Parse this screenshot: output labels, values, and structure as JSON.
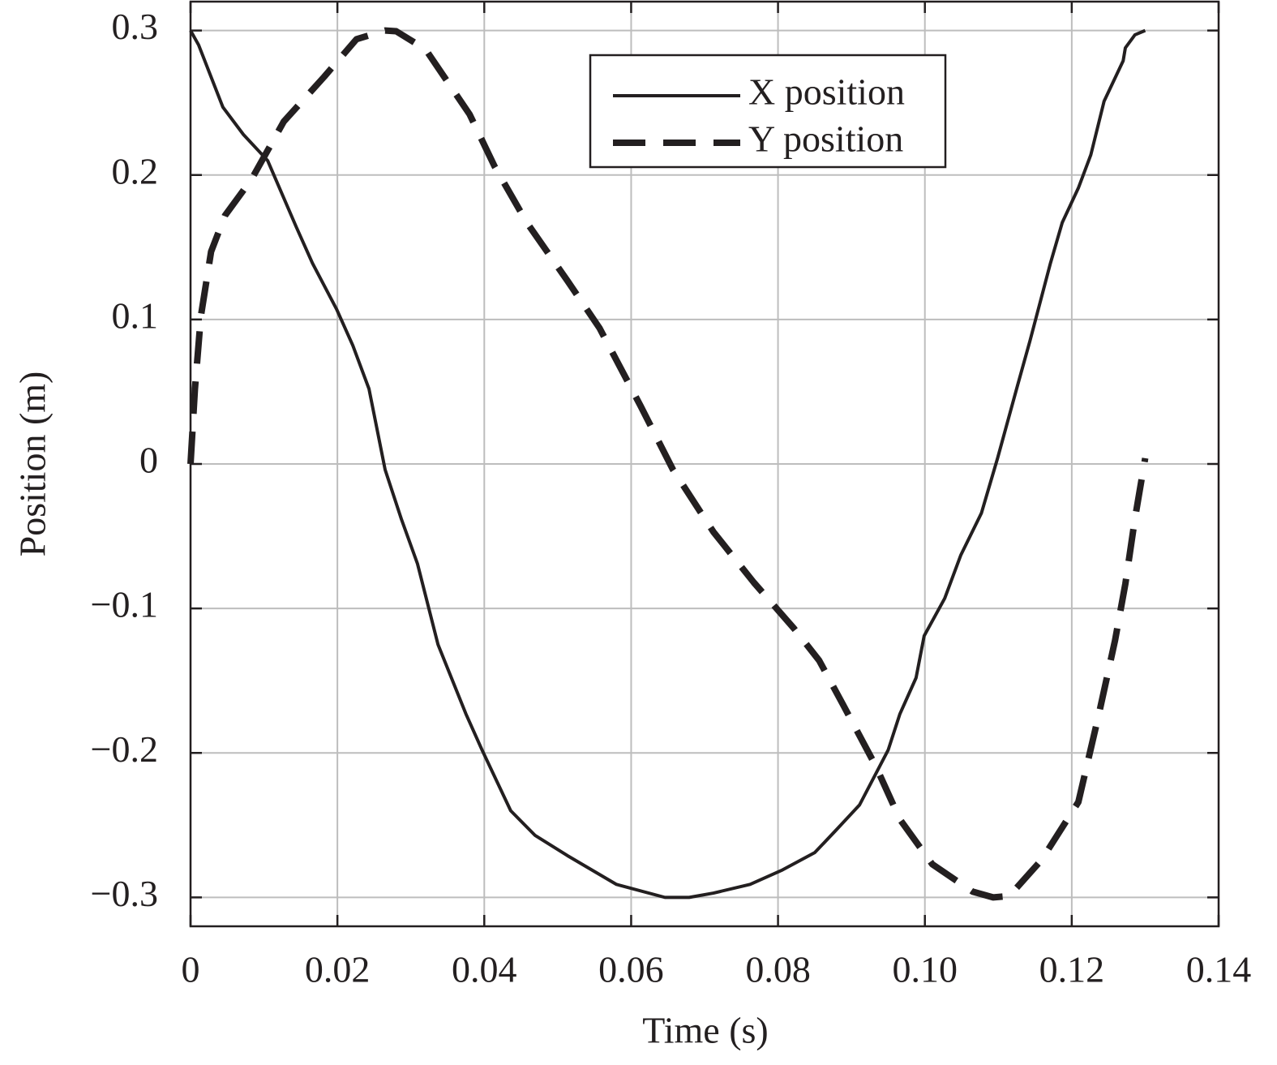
{
  "chart_data": {
    "type": "line",
    "xlabel": "Time (s)",
    "ylabel": "Position (m)",
    "xlim": [
      0,
      0.14
    ],
    "ylim": [
      -0.32,
      0.32
    ],
    "xticks": [
      0,
      0.02,
      0.04,
      0.06,
      0.08,
      {
        "value": 0.1,
        "label": "0.10"
      },
      0.12,
      0.14
    ],
    "yticks": [
      {
        "value": -0.3,
        "label": "−0.3"
      },
      {
        "value": -0.2,
        "label": "−0.2"
      },
      {
        "value": -0.1,
        "label": "−0.1"
      },
      0,
      0.1,
      0.2,
      0.3
    ],
    "grid": true,
    "legend": "upper right",
    "series": [
      {
        "name": "X position",
        "color": "#231f20",
        "style": "solid",
        "x": [
          0,
          0.0011,
          0.0044,
          0.0072,
          0.0105,
          0.0144,
          0.0166,
          0.0199,
          0.0221,
          0.0243,
          0.0265,
          0.0287,
          0.0309,
          0.0337,
          0.0375,
          0.0397,
          0.0436,
          0.0469,
          0.0513,
          0.058,
          0.0646,
          0.0679,
          0.0712,
          0.0762,
          0.0806,
          0.085,
          0.0878,
          0.0911,
          0.095,
          0.0966,
          0.0988,
          0.0999,
          0.1027,
          0.1049,
          0.1077,
          0.1099,
          0.1126,
          0.1143,
          0.1171,
          0.1187,
          0.1209,
          0.1226,
          0.1244,
          0.127,
          0.1273,
          0.1286,
          0.13
        ],
        "values": [
          0.3,
          0.29,
          0.247,
          0.228,
          0.21,
          0.164,
          0.139,
          0.107,
          0.082,
          0.052,
          -0.004,
          -0.038,
          -0.069,
          -0.125,
          -0.173,
          -0.198,
          -0.24,
          -0.257,
          -0.271,
          -0.291,
          -0.3,
          -0.3,
          -0.297,
          -0.291,
          -0.281,
          -0.269,
          -0.254,
          -0.236,
          -0.198,
          -0.173,
          -0.148,
          -0.119,
          -0.093,
          -0.063,
          -0.034,
          0.004,
          0.054,
          0.085,
          0.139,
          0.167,
          0.191,
          0.214,
          0.251,
          0.279,
          0.288,
          0.297,
          0.3
        ]
      },
      {
        "name": "Y position",
        "color": "#231f20",
        "style": "dashed",
        "x": [
          0,
          0.0006,
          0.0014,
          0.0028,
          0.0047,
          0.0083,
          0.0127,
          0.0182,
          0.0226,
          0.0265,
          0.028,
          0.032,
          0.038,
          0.0414,
          0.0458,
          0.0513,
          0.0557,
          0.0613,
          0.0657,
          0.0712,
          0.0767,
          0.0822,
          0.0856,
          0.0889,
          0.0933,
          0.0966,
          0.101,
          0.1065,
          0.1093,
          0.1115,
          0.1159,
          0.1209,
          0.1237,
          0.1259,
          0.1273,
          0.1286,
          0.13
        ],
        "values": [
          0,
          0.052,
          0.102,
          0.147,
          0.172,
          0.197,
          0.237,
          0.268,
          0.294,
          0.3,
          0.2995,
          0.287,
          0.242,
          0.206,
          0.167,
          0.127,
          0.094,
          0.04,
          -0.004,
          -0.047,
          -0.082,
          -0.114,
          -0.136,
          -0.167,
          -0.209,
          -0.246,
          -0.277,
          -0.296,
          -0.3,
          -0.299,
          -0.274,
          -0.234,
          -0.173,
          -0.122,
          -0.083,
          -0.038,
          0.004
        ]
      }
    ]
  }
}
